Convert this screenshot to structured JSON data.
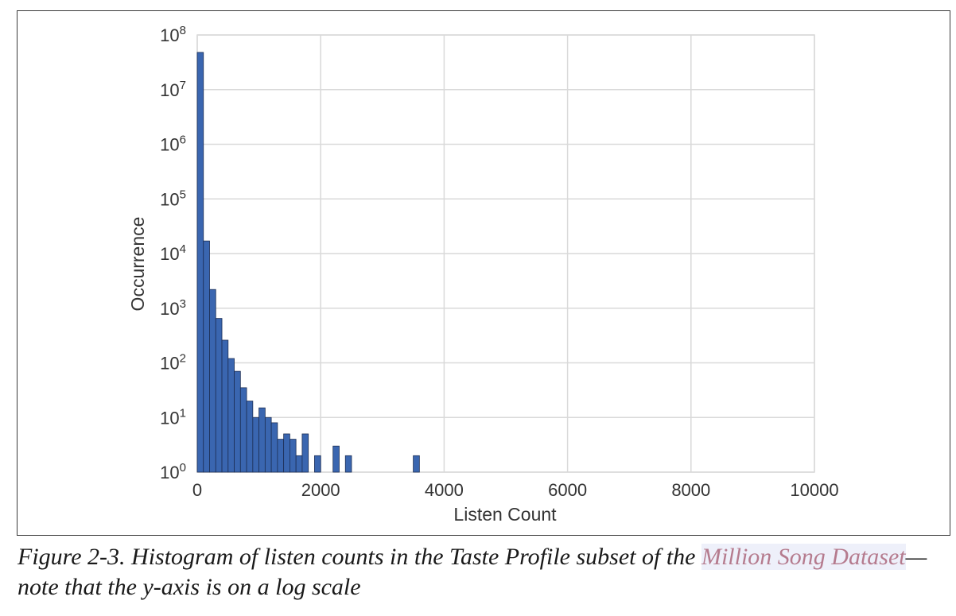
{
  "figure": {
    "caption_prefix": "Figure 2-3. Histogram of listen counts in the Taste Profile subset of the ",
    "caption_link": "Million Song Dataset",
    "caption_suffix": "—note that the y-axis is on a log scale"
  },
  "colors": {
    "bar_fill": "#3a66b0",
    "bar_stroke": "#1d2f55",
    "grid": "#d9d9d9",
    "link_text": "#b57b8e",
    "link_bg": "#eef0fa"
  },
  "chart_data": {
    "type": "bar",
    "title": "",
    "xlabel": "Listen Count",
    "ylabel": "Occurrence",
    "xlim": [
      0,
      10000
    ],
    "ylim": [
      1,
      100000000
    ],
    "yscale": "log",
    "grid": true,
    "bin_width": 100,
    "x_ticks": [
      "0",
      "2000",
      "4000",
      "6000",
      "8000",
      "10000"
    ],
    "y_ticks": [
      {
        "base": "10",
        "exp": "0"
      },
      {
        "base": "10",
        "exp": "1"
      },
      {
        "base": "10",
        "exp": "2"
      },
      {
        "base": "10",
        "exp": "3"
      },
      {
        "base": "10",
        "exp": "4"
      },
      {
        "base": "10",
        "exp": "5"
      },
      {
        "base": "10",
        "exp": "6"
      },
      {
        "base": "10",
        "exp": "7"
      },
      {
        "base": "10",
        "exp": "8"
      }
    ],
    "bins": [
      {
        "x": 0,
        "value": 48000000
      },
      {
        "x": 100,
        "value": 17000
      },
      {
        "x": 200,
        "value": 2200
      },
      {
        "x": 300,
        "value": 650
      },
      {
        "x": 400,
        "value": 260
      },
      {
        "x": 500,
        "value": 120
      },
      {
        "x": 600,
        "value": 70
      },
      {
        "x": 700,
        "value": 35
      },
      {
        "x": 800,
        "value": 20
      },
      {
        "x": 900,
        "value": 10
      },
      {
        "x": 1000,
        "value": 15
      },
      {
        "x": 1100,
        "value": 10
      },
      {
        "x": 1200,
        "value": 8
      },
      {
        "x": 1300,
        "value": 4
      },
      {
        "x": 1400,
        "value": 5
      },
      {
        "x": 1500,
        "value": 4
      },
      {
        "x": 1600,
        "value": 2
      },
      {
        "x": 1700,
        "value": 5
      },
      {
        "x": 1900,
        "value": 2
      },
      {
        "x": 2200,
        "value": 3
      },
      {
        "x": 2400,
        "value": 2
      },
      {
        "x": 3500,
        "value": 2
      }
    ]
  }
}
